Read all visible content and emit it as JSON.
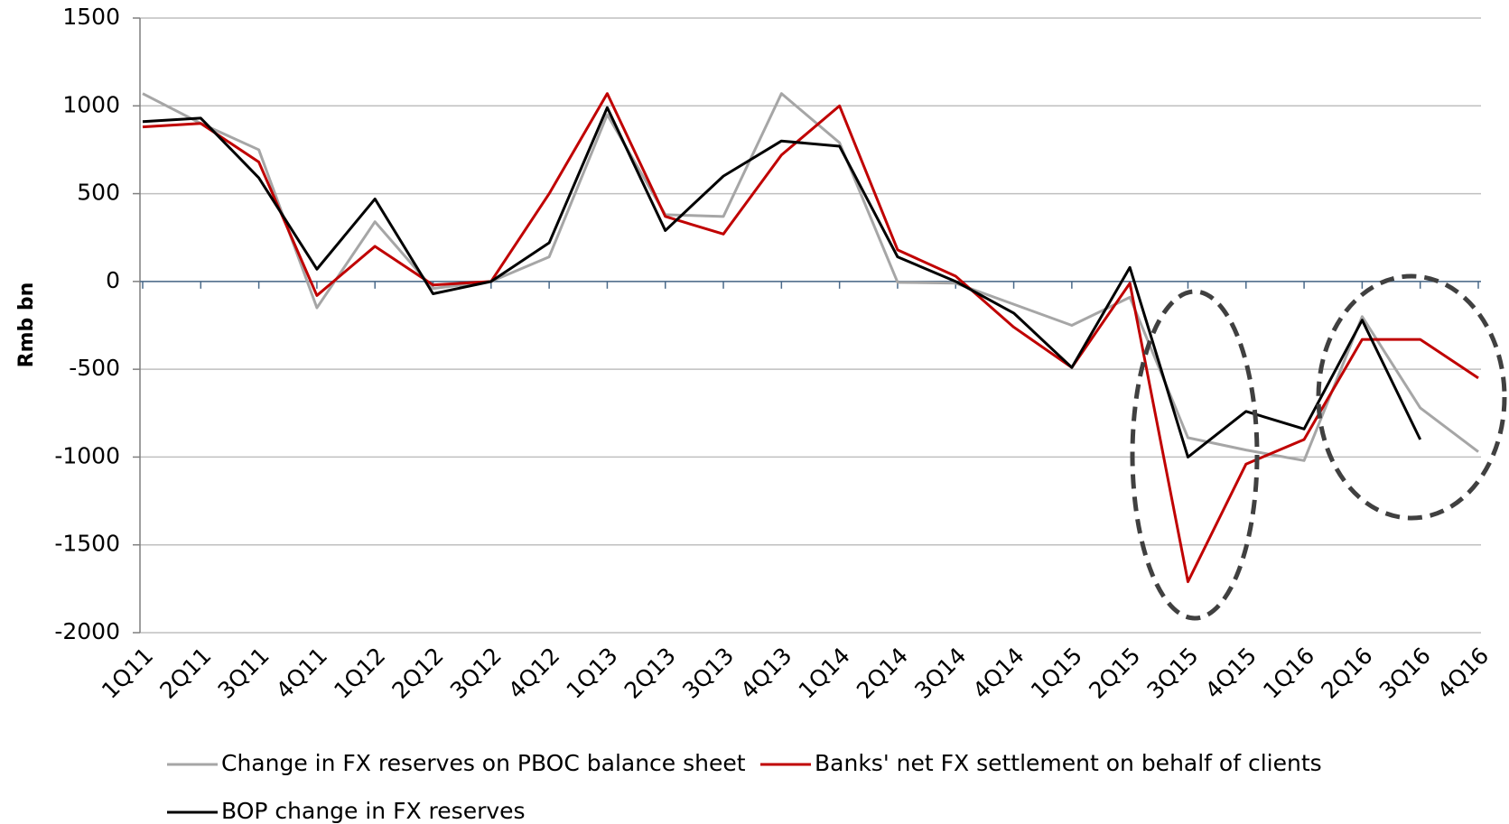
{
  "chart_data": {
    "type": "line",
    "y_label": "Rmb  bn",
    "categories": [
      "1Q11",
      "2Q11",
      "3Q11",
      "4Q11",
      "1Q12",
      "2Q12",
      "3Q12",
      "4Q12",
      "1Q13",
      "2Q13",
      "3Q13",
      "4Q13",
      "1Q14",
      "2Q14",
      "3Q14",
      "4Q14",
      "1Q15",
      "2Q15",
      "3Q15",
      "4Q15",
      "1Q16",
      "2Q16",
      "3Q16",
      "4Q16"
    ],
    "series": [
      {
        "name": "Change in FX reserves on PBOC balance sheet",
        "color": "#a6a6a6",
        "values": [
          1070,
          900,
          750,
          -150,
          340,
          -40,
          0,
          140,
          950,
          380,
          370,
          1070,
          790,
          -5,
          -10,
          -130,
          -250,
          -90,
          -890,
          -960,
          -1020,
          -200,
          -720,
          -970
        ]
      },
      {
        "name": "Banks' net FX settlement on behalf of clients",
        "color": "#c00000",
        "values": [
          880,
          900,
          680,
          -80,
          200,
          -20,
          0,
          500,
          1070,
          370,
          270,
          720,
          1000,
          180,
          30,
          -260,
          -490,
          -10,
          -1710,
          -1040,
          -900,
          -330,
          -330,
          -550
        ]
      },
      {
        "name": "BOP change in FX reserves",
        "color": "#000000",
        "values": [
          910,
          930,
          590,
          70,
          470,
          -70,
          0,
          220,
          990,
          290,
          600,
          800,
          770,
          140,
          0,
          -180,
          -490,
          80,
          -1000,
          -740,
          -840,
          -220,
          -900,
          null
        ]
      }
    ],
    "ylim": [
      -2000,
      1500
    ],
    "yticks": [
      -2000,
      -1500,
      -1000,
      -500,
      0,
      500,
      1000,
      1500
    ],
    "grid": true
  }
}
